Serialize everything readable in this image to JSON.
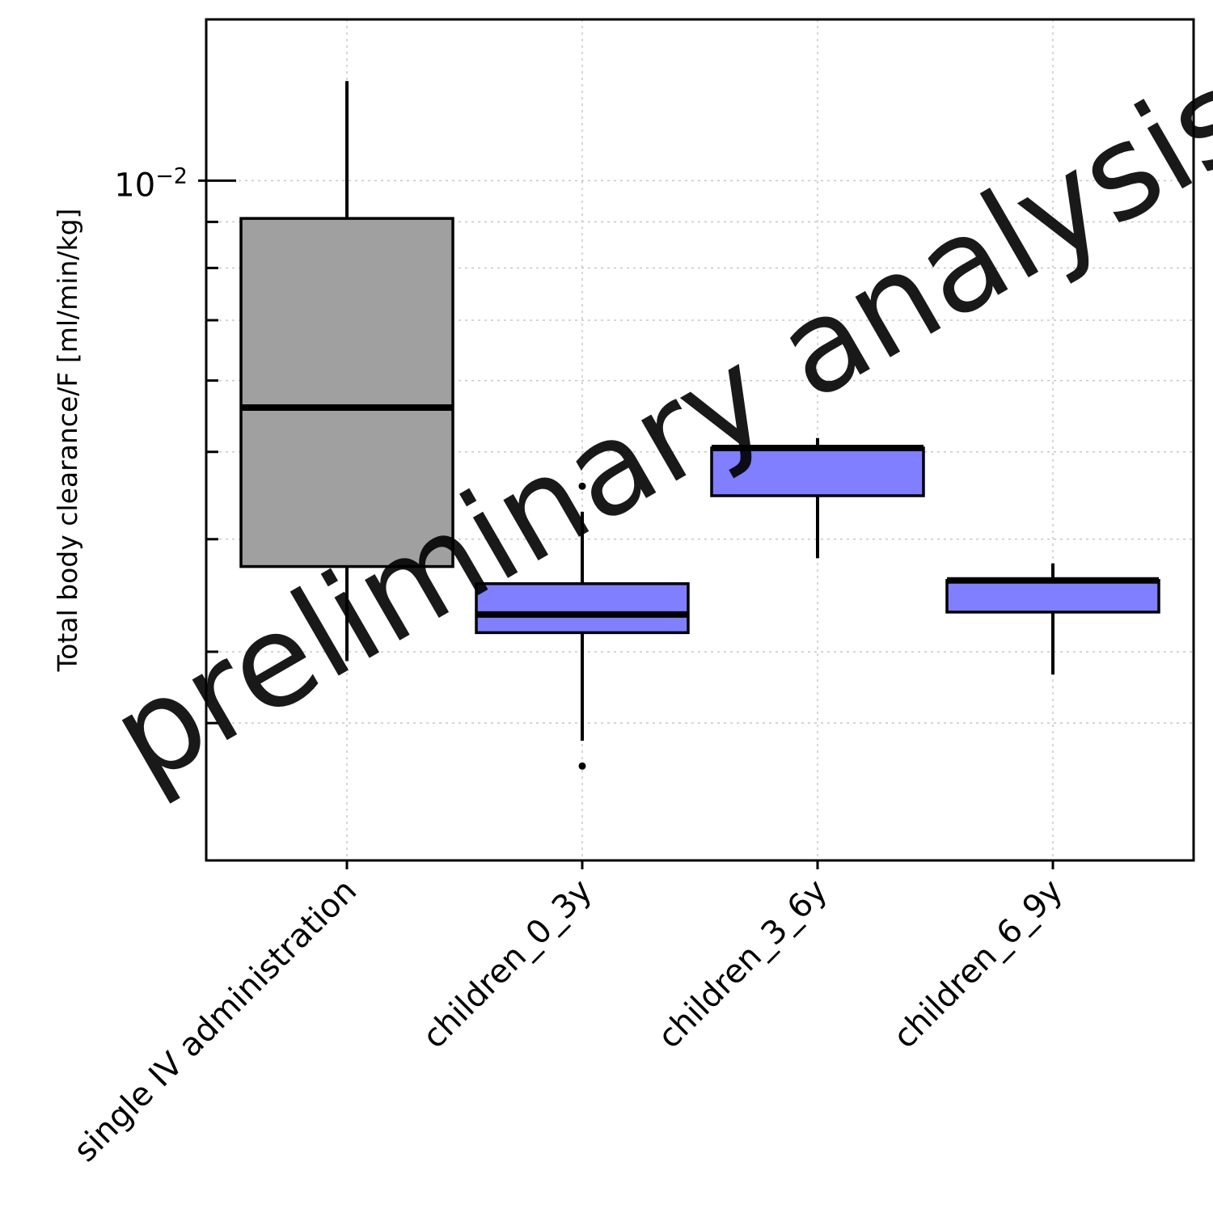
{
  "chart_data": {
    "type": "box",
    "ylabel": "Total body clearance/F [ml/min/kg]",
    "y_scale": "log",
    "ylim": [
      0.00176,
      0.0151
    ],
    "y_ticks": [
      {
        "value": 0.01,
        "base": "10",
        "exponent": "−2"
      }
    ],
    "y_minor_ticks": [
      0.0025,
      0.003,
      0.004,
      0.005,
      0.006,
      0.007,
      0.008,
      0.009
    ],
    "grid": true,
    "categories": [
      "single IV administration",
      "children_0_3y",
      "children_3_6y",
      "children_6_9y"
    ],
    "boxes": [
      {
        "category": "single IV administration",
        "whisker_low": 0.00293,
        "q1": 0.00373,
        "median": 0.0056,
        "q3": 0.00908,
        "whisker_high": 0.0129,
        "outliers": [],
        "color": "#a0a0a0"
      },
      {
        "category": "children_0_3y",
        "whisker_low": 0.00239,
        "q1": 0.00315,
        "median": 0.0033,
        "q3": 0.00357,
        "whisker_high": 0.00429,
        "outliers": [
          0.00458,
          0.00224
        ],
        "color": "#7f7fff"
      },
      {
        "category": "children_3_6y",
        "whisker_low": 0.00381,
        "q1": 0.00447,
        "median": 0.00505,
        "q3": 0.00505,
        "whisker_high": 0.00518,
        "outliers": [],
        "color": "#7f7fff"
      },
      {
        "category": "children_6_9y",
        "whisker_low": 0.00283,
        "q1": 0.00332,
        "median": 0.0036,
        "q3": 0.0036,
        "whisker_high": 0.00376,
        "outliers": [],
        "color": "#7f7fff"
      }
    ]
  },
  "watermark": "preliminary analysis"
}
